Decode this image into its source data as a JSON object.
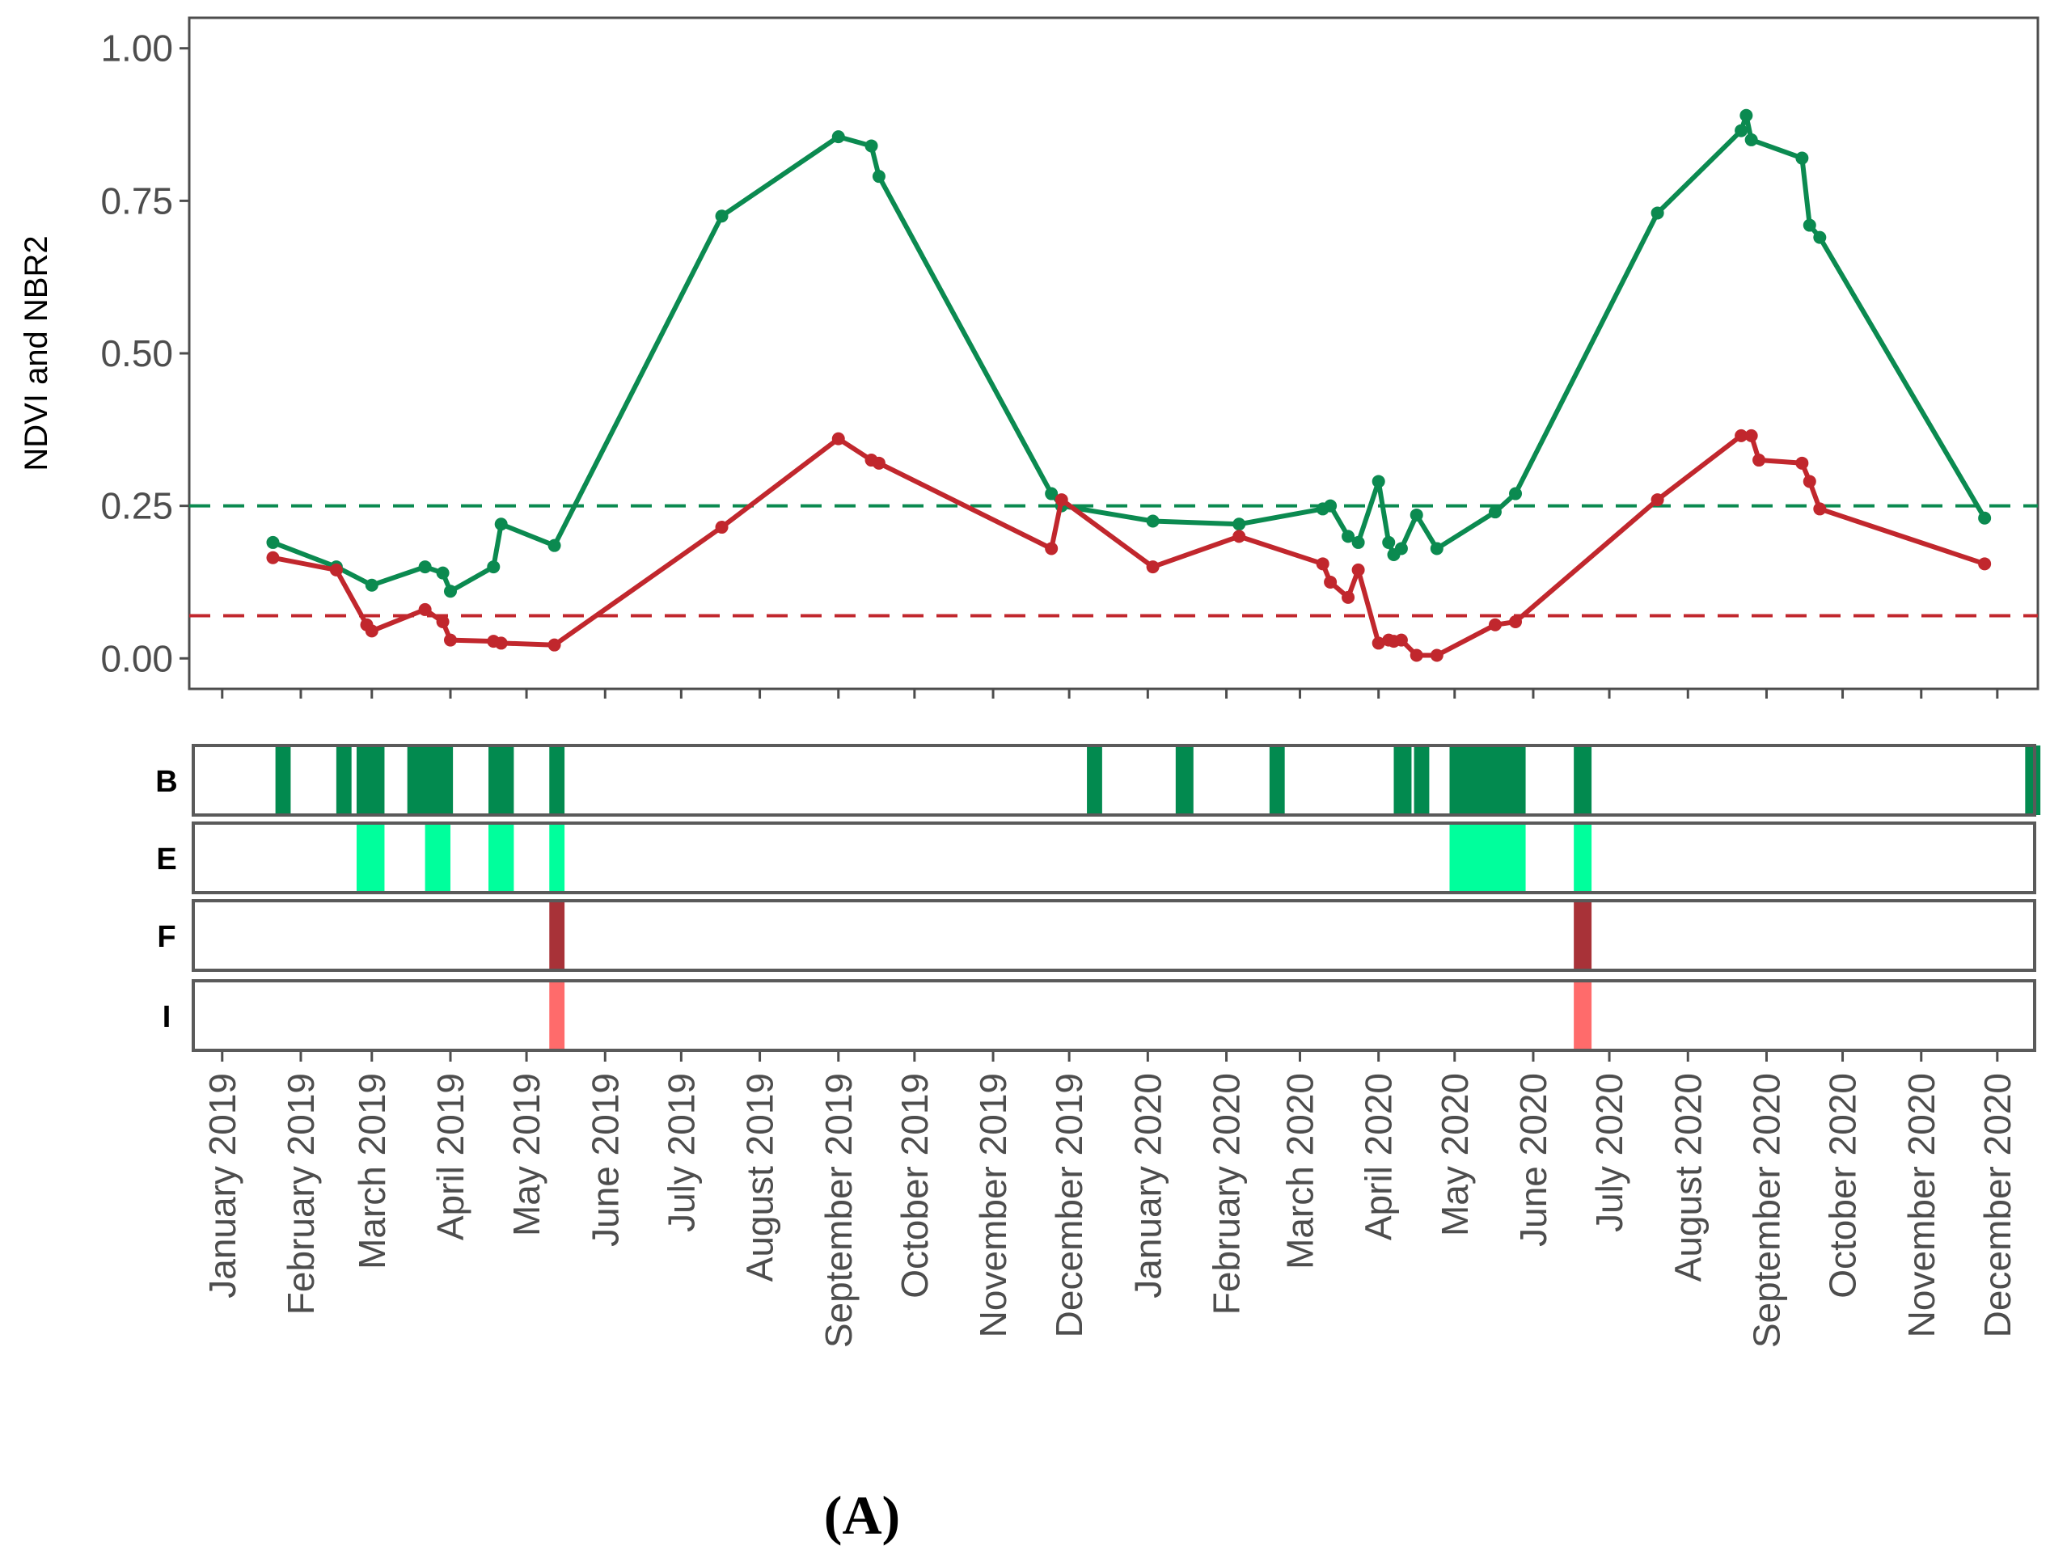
{
  "figure_label": "(A)",
  "chart_data": [
    {
      "type": "line",
      "ylabel": "NDVI and NBR2",
      "ylim": [
        -0.05,
        1.05
      ],
      "y_ticks": [
        0.0,
        0.25,
        0.5,
        0.75,
        1.0
      ],
      "y_tick_labels": [
        "0.00",
        "0.25",
        "0.50",
        "0.75",
        "1.00"
      ],
      "x_unit": "days since 2019-01-01",
      "xlim": [
        -13,
        716
      ],
      "x_ticks": [
        0,
        31,
        59,
        90,
        120,
        151,
        181,
        212,
        243,
        273,
        304,
        334,
        365,
        396,
        425,
        456,
        486,
        517,
        547,
        578,
        609,
        639,
        670,
        700
      ],
      "x_tick_labels": [
        "January 2019",
        "February 2019",
        "March 2019",
        "April 2019",
        "May 2019",
        "June 2019",
        "July 2019",
        "August 2019",
        "September 2019",
        "October 2019",
        "November 2019",
        "December 2019",
        "January 2020",
        "February 2020",
        "March 2020",
        "April 2020",
        "May 2020",
        "June 2020",
        "July 2020",
        "August 2020",
        "September 2020",
        "October 2020",
        "November 2020",
        "December 2020"
      ],
      "grid": false,
      "series": [
        {
          "name": "NDVI",
          "color": "#0b8a50",
          "x": [
            20,
            45,
            59,
            80,
            87,
            90,
            107,
            110,
            131,
            197,
            243,
            256,
            259,
            327,
            331,
            367,
            401,
            434,
            437,
            444,
            448,
            456,
            460,
            462,
            465,
            471,
            479,
            502,
            510,
            566,
            599,
            601,
            603,
            623,
            626,
            630,
            695
          ],
          "y": [
            0.19,
            0.15,
            0.12,
            0.15,
            0.14,
            0.11,
            0.15,
            0.22,
            0.185,
            0.725,
            0.855,
            0.84,
            0.79,
            0.27,
            0.25,
            0.225,
            0.22,
            0.245,
            0.25,
            0.2,
            0.19,
            0.29,
            0.19,
            0.17,
            0.18,
            0.235,
            0.18,
            0.24,
            0.27,
            0.73,
            0.865,
            0.89,
            0.85,
            0.82,
            0.71,
            0.69,
            0.23
          ]
        },
        {
          "name": "NBR2",
          "color": "#c1272d",
          "x": [
            20,
            45,
            57,
            59,
            80,
            87,
            90,
            107,
            110,
            131,
            197,
            243,
            256,
            259,
            327,
            331,
            367,
            401,
            434,
            437,
            444,
            448,
            456,
            460,
            462,
            465,
            471,
            479,
            502,
            510,
            566,
            599,
            603,
            606,
            623,
            626,
            630,
            695
          ],
          "y": [
            0.165,
            0.145,
            0.055,
            0.045,
            0.08,
            0.06,
            0.03,
            0.028,
            0.025,
            0.022,
            0.215,
            0.36,
            0.325,
            0.32,
            0.18,
            0.26,
            0.15,
            0.2,
            0.155,
            0.125,
            0.1,
            0.145,
            0.025,
            0.03,
            0.028,
            0.03,
            0.005,
            0.005,
            0.055,
            0.06,
            0.26,
            0.365,
            0.365,
            0.325,
            0.32,
            0.29,
            0.245,
            0.155
          ]
        }
      ],
      "reference_lines": [
        {
          "name": "NDVI threshold",
          "y": 0.25,
          "color": "#0b8a50",
          "style": "dashed"
        },
        {
          "name": "NBR2 threshold",
          "y": 0.07,
          "color": "#c1272d",
          "style": "dashed"
        }
      ]
    },
    {
      "type": "event-strips",
      "strips": [
        {
          "label": "B",
          "color": "#028a4f",
          "intervals": [
            [
              21,
              27
            ],
            [
              45,
              51
            ],
            [
              53,
              64
            ],
            [
              73,
              91
            ],
            [
              105,
              115
            ],
            [
              129,
              135
            ],
            [
              341,
              347
            ],
            [
              376,
              383
            ],
            [
              413,
              419
            ],
            [
              462,
              469
            ],
            [
              470,
              476
            ],
            [
              484,
              514
            ],
            [
              533,
              540
            ],
            [
              711,
              717
            ]
          ]
        },
        {
          "label": "E",
          "color": "#00ff9c",
          "intervals": [
            [
              53,
              64
            ],
            [
              80,
              90
            ],
            [
              105,
              115
            ],
            [
              129,
              135
            ],
            [
              484,
              514
            ],
            [
              533,
              540
            ]
          ]
        },
        {
          "label": "F",
          "color": "#a83238",
          "intervals": [
            [
              129,
              135
            ],
            [
              533,
              540
            ]
          ]
        },
        {
          "label": "I",
          "color": "#ff6b6b",
          "intervals": [
            [
              129,
              135
            ],
            [
              533,
              540
            ]
          ]
        }
      ]
    }
  ]
}
